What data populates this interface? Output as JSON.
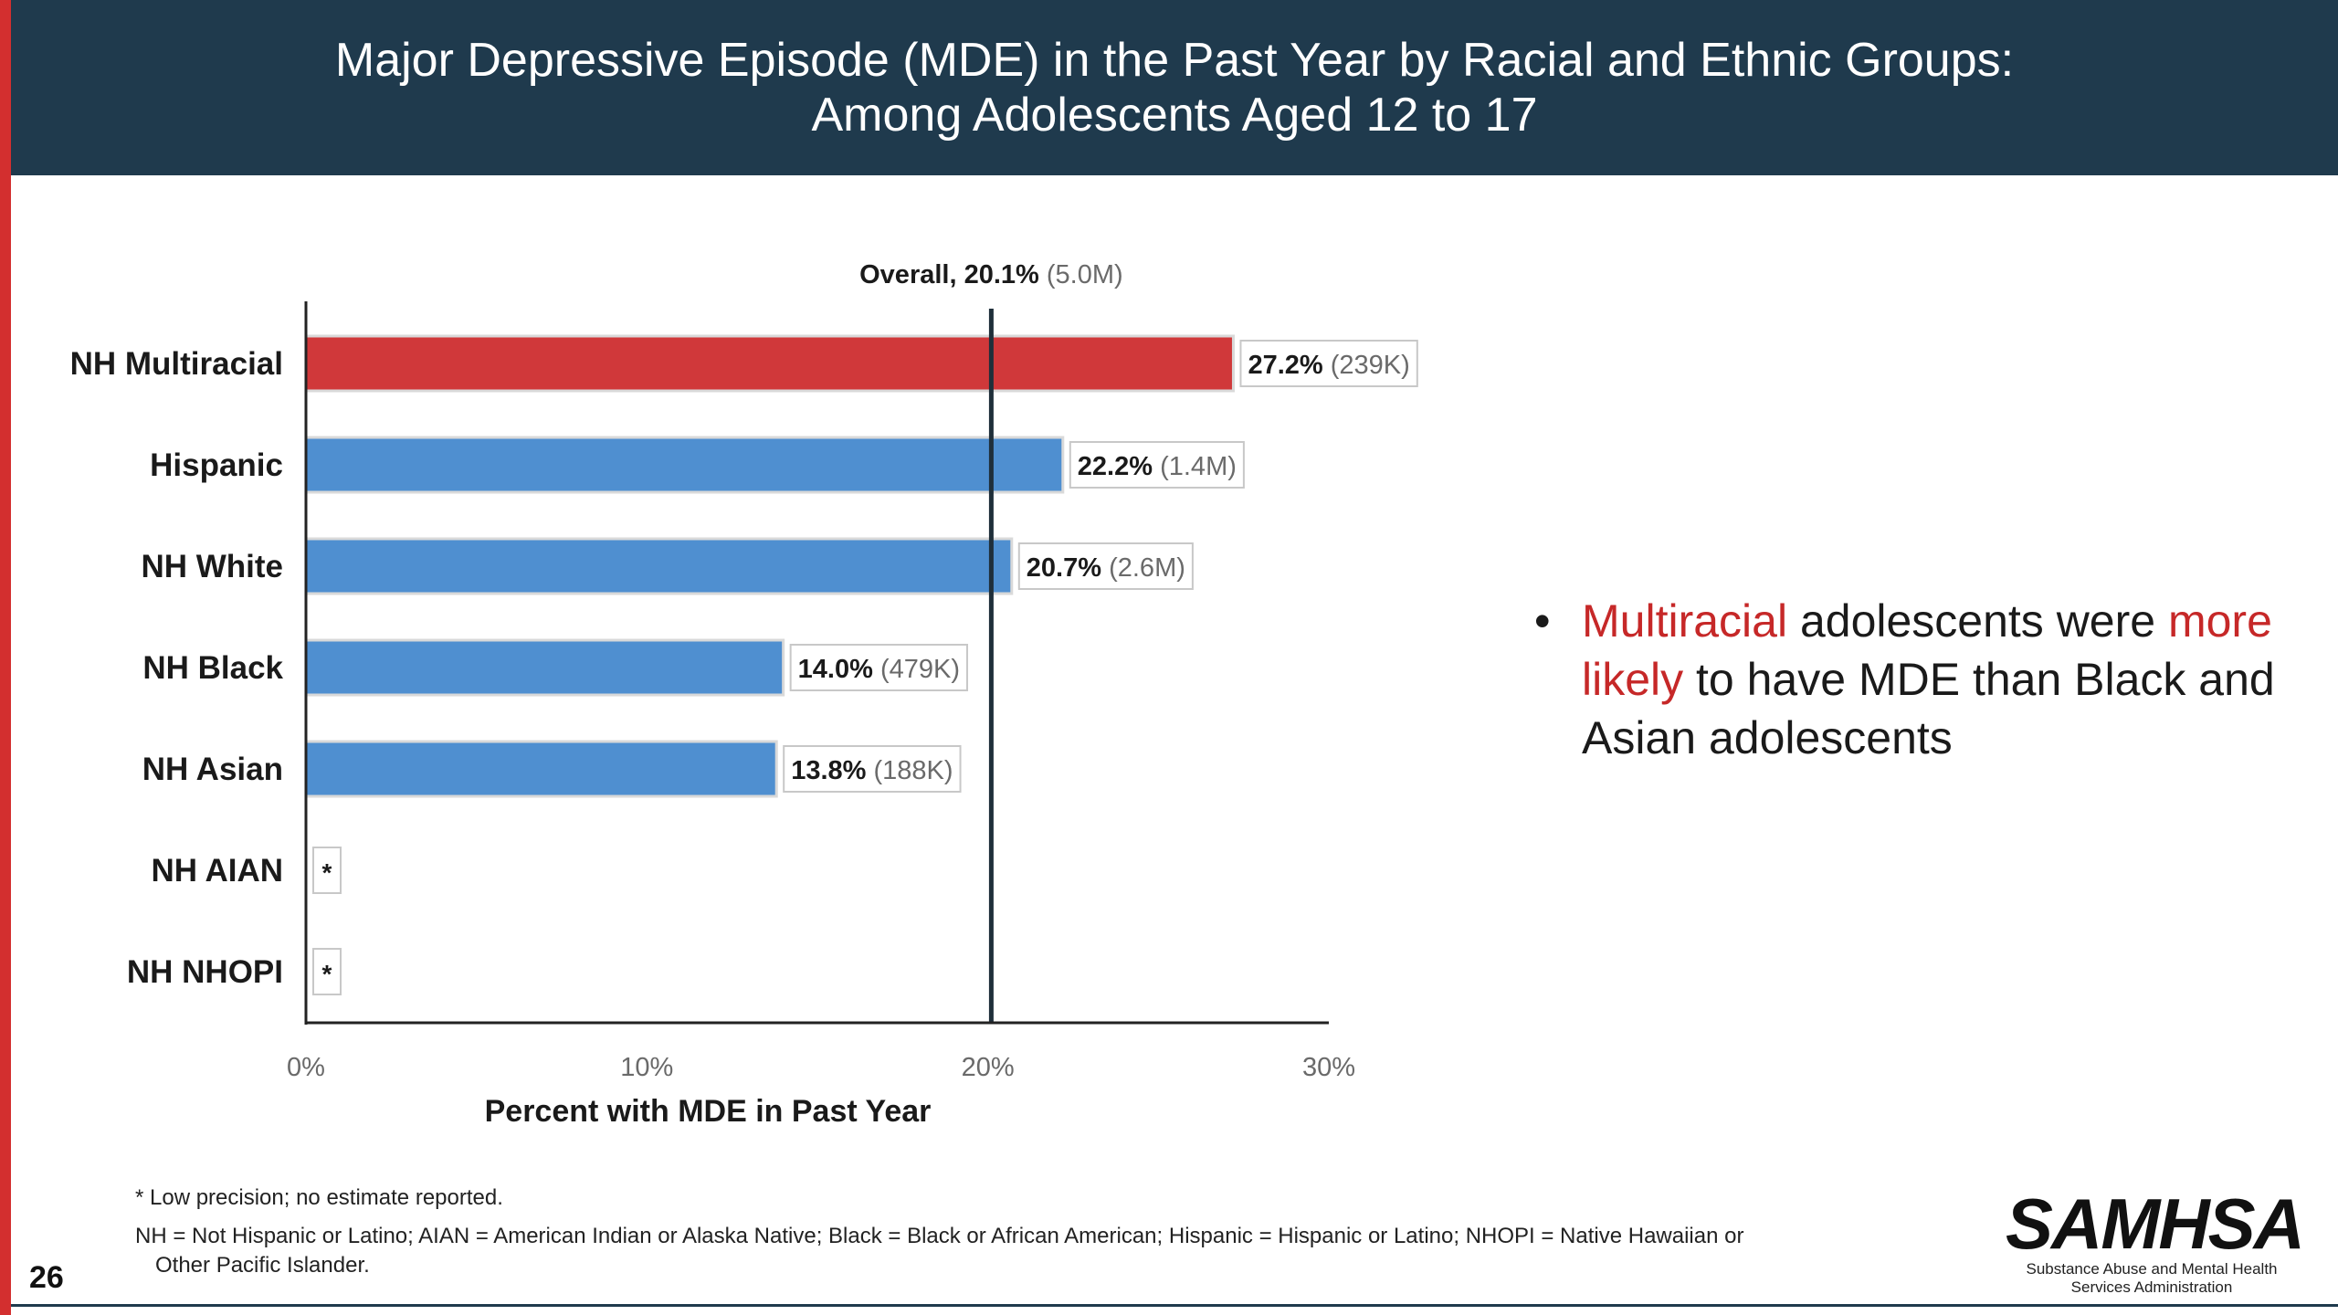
{
  "slide": {
    "title_line1": "Major Depressive Episode (MDE) in the Past Year by Racial and Ethnic Groups:",
    "title_line2": "Among Adolescents Aged 12 to 17",
    "page_number": "26",
    "footnote_1": "* Low precision; no estimate reported.",
    "footnote_2a": "NH = Not Hispanic or Latino; AIAN = American Indian or Alaska Native; Black = Black or African American; Hispanic = Hispanic or Latino; NHOPI = Native Hawaiian or",
    "footnote_2b": "Other Pacific Islander.",
    "logo_text": "SAMHSA",
    "logo_sub_1": "Substance Abuse and Mental Health",
    "logo_sub_2": "Services Administration"
  },
  "takeaway": {
    "bullet": "•",
    "part1": "Multiracial",
    "part2": " adolescents were ",
    "part3": "more likely",
    "part4": " to have MDE than Black and Asian adolescents"
  },
  "colors": {
    "title_band": "#1f3a4d",
    "accent_red": "#d32f2f",
    "bar_highlight": "#d0383a",
    "bar_default": "#4f8fd0"
  },
  "chart_data": {
    "type": "bar",
    "orientation": "horizontal",
    "categories": [
      "NH Multiracial",
      "Hispanic",
      "NH White",
      "NH Black",
      "NH Asian",
      "NH AIAN",
      "NH NHOPI"
    ],
    "values": [
      27.2,
      22.2,
      20.7,
      14.0,
      13.8,
      null,
      null
    ],
    "highlight": [
      "NH Multiracial"
    ],
    "value_labels": [
      "27.2%",
      "22.2%",
      "20.7%",
      "14.0%",
      "13.8%",
      "*",
      "*"
    ],
    "count_labels": [
      "(239K)",
      "(1.4M)",
      "(2.6M)",
      "(479K)",
      "(188K)",
      "",
      ""
    ],
    "xlim": [
      0,
      30
    ],
    "xticks": [
      "0%",
      "10%",
      "20%",
      "30%"
    ],
    "xtick_values": [
      0,
      10,
      20,
      30
    ],
    "xlabel": "Percent with MDE in Past Year",
    "reference_line": {
      "value": 20.1,
      "label": "Overall, 20.1%",
      "count": "(5.0M)"
    },
    "grid": false
  }
}
